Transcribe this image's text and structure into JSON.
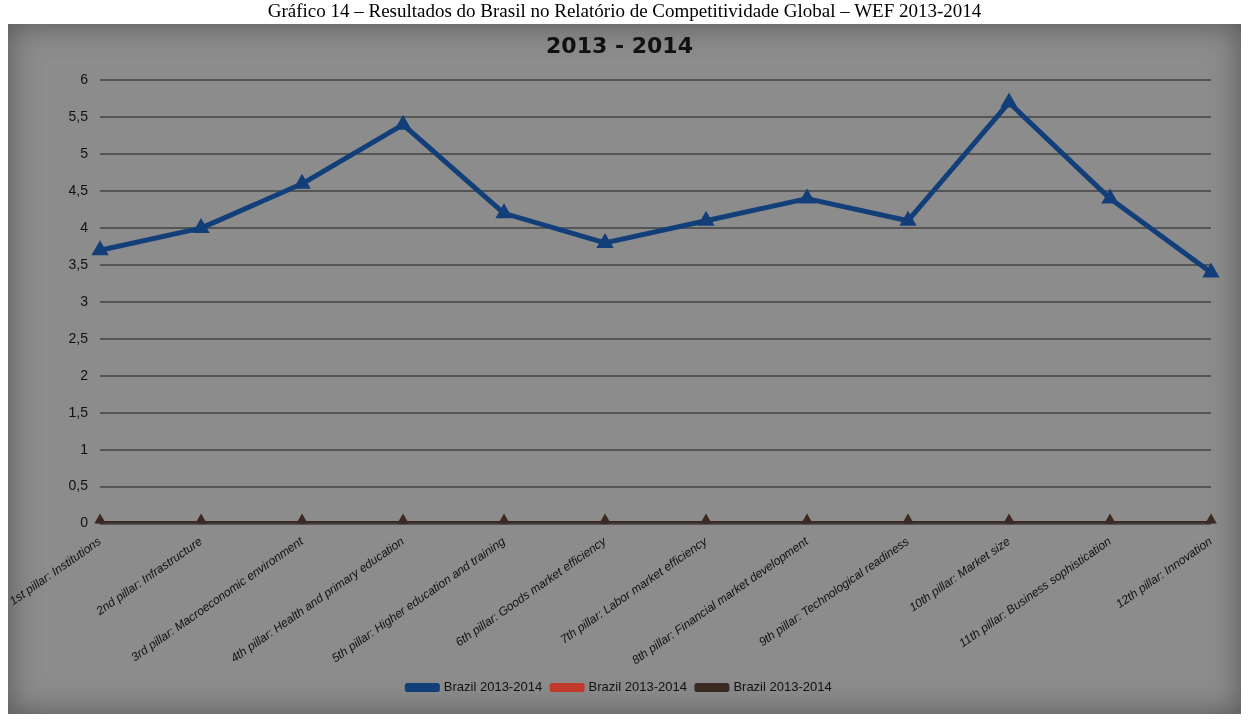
{
  "chart_data": {
    "type": "line",
    "title": "Gráfico 14 – Resultados do Brasil no Relatório de Competitividade Global – WEF 2013-2014",
    "subtitle": "2013 - 2014",
    "categories": [
      "1st pillar: Institutions",
      "2nd pillar: Infrastructure",
      "3rd pillar: Macroeconomic environment",
      "4th pillar: Health and primary education",
      "5th pillar: Higher education and training",
      "6th pillar: Goods market efficiency",
      "7th pillar: Labor market efficiency",
      "8th pillar: Financial market development",
      "9th pillar: Technological readiness",
      "10th pillar: Market size",
      "11th pillar: Business sophistication",
      "12th pillar: Innovation"
    ],
    "series": [
      {
        "name": "Brazil 2013-2014",
        "color": "#123f7a",
        "values": [
          3.7,
          4.0,
          4.6,
          5.4,
          4.2,
          3.8,
          4.1,
          4.4,
          4.1,
          5.7,
          4.4,
          3.4
        ]
      },
      {
        "name": "Brazil 2013-2014",
        "color": "#c0392b",
        "values": [
          null,
          null,
          null,
          null,
          null,
          null,
          null,
          null,
          null,
          null,
          null,
          null
        ]
      },
      {
        "name": "Brazil 2013-2014",
        "color": "#3b2a22",
        "values": [
          0,
          0,
          0,
          0,
          0,
          0,
          0,
          0,
          0,
          0,
          0,
          0
        ]
      }
    ],
    "ylim": [
      0,
      6
    ],
    "yticks": [
      0,
      {
        "value": 0.5,
        "label": "0,5"
      },
      1,
      {
        "value": 1.5,
        "label": "1,5"
      },
      2,
      {
        "value": 2.5,
        "label": "2,5"
      },
      3,
      {
        "value": 3.5,
        "label": "3,5"
      },
      4,
      {
        "value": 4.5,
        "label": "4,5"
      },
      5,
      {
        "value": 5.5,
        "label": "5,5"
      },
      6
    ],
    "grid": "y",
    "legend": "bottom",
    "marker": "triangle",
    "line_style": "solid"
  }
}
